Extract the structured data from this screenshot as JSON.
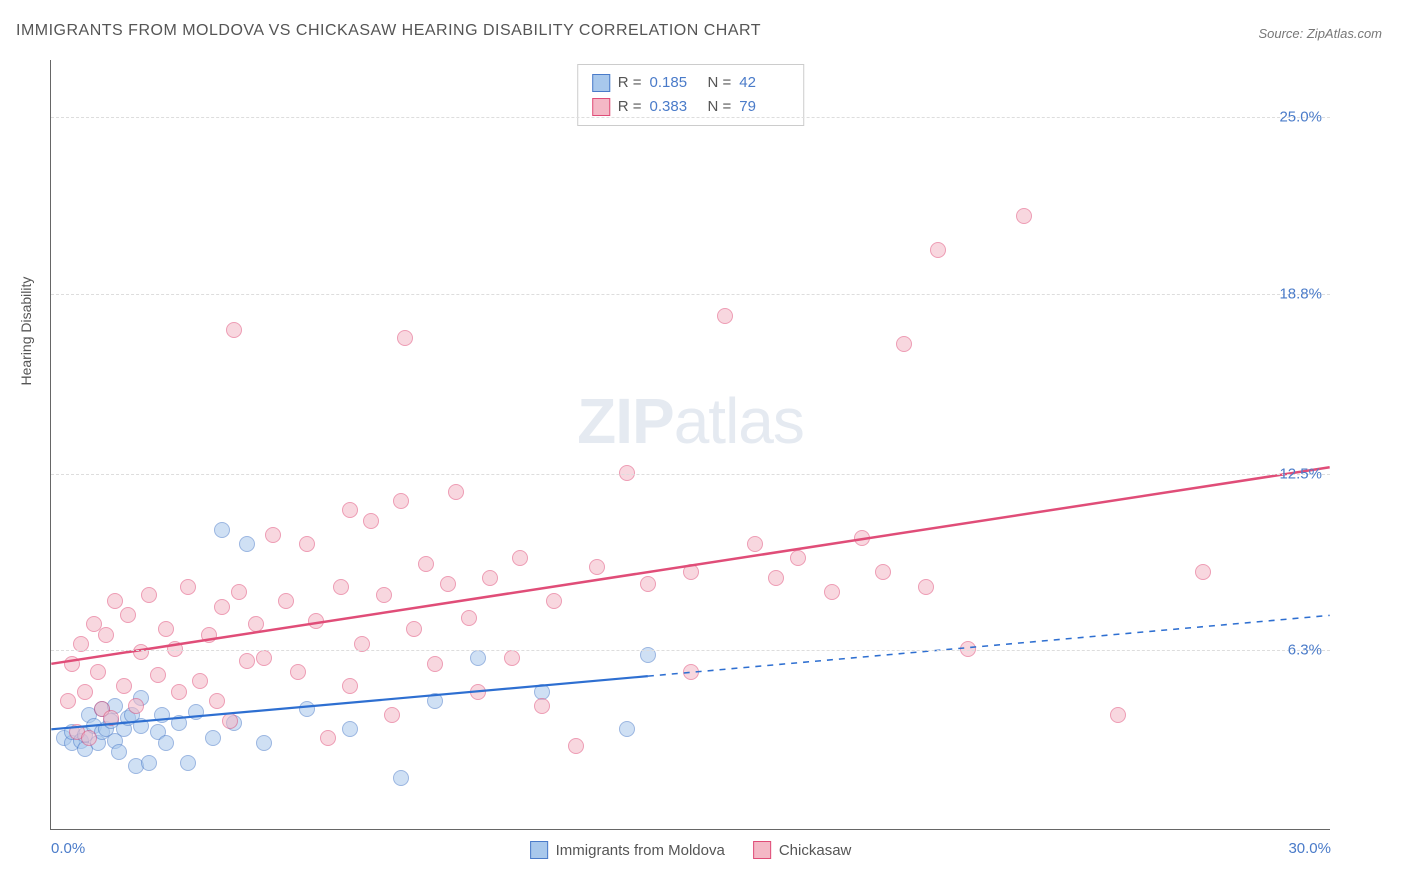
{
  "title": "IMMIGRANTS FROM MOLDOVA VS CHICKASAW HEARING DISABILITY CORRELATION CHART",
  "source": "Source: ZipAtlas.com",
  "y_axis_label": "Hearing Disability",
  "watermark": {
    "bold": "ZIP",
    "light": "atlas"
  },
  "chart": {
    "type": "scatter",
    "background_color": "#ffffff",
    "grid_color": "#dddddd",
    "axis_color": "#666666",
    "tick_label_color": "#4a7bc9",
    "tick_fontsize": 15,
    "xlim": [
      0.0,
      30.0
    ],
    "ylim": [
      0.0,
      27.0
    ],
    "x_ticks": [
      {
        "value": 0.0,
        "label": "0.0%"
      },
      {
        "value": 30.0,
        "label": "30.0%"
      }
    ],
    "y_ticks": [
      {
        "value": 6.3,
        "label": "6.3%"
      },
      {
        "value": 12.5,
        "label": "12.5%"
      },
      {
        "value": 18.8,
        "label": "18.8%"
      },
      {
        "value": 25.0,
        "label": "25.0%"
      }
    ],
    "series": [
      {
        "key": "moldova",
        "label": "Immigrants from Moldova",
        "marker": "circle",
        "marker_radius": 8,
        "fill_color": "#a8c8ec",
        "fill_opacity": 0.55,
        "stroke_color": "#4a7bc9",
        "trend": {
          "color": "#2e6fd1",
          "width": 2.2,
          "solid_from_x": 0.0,
          "solid_to_x": 14.0,
          "dash_from_x": 14.0,
          "dash_to_x": 30.0,
          "y_at_x0": 3.5,
          "y_at_x30": 7.5
        },
        "R": "0.185",
        "N": "42",
        "points": [
          [
            0.3,
            3.2
          ],
          [
            0.5,
            3.0
          ],
          [
            0.5,
            3.4
          ],
          [
            0.7,
            3.1
          ],
          [
            0.8,
            2.8
          ],
          [
            0.8,
            3.3
          ],
          [
            0.9,
            4.0
          ],
          [
            1.0,
            3.6
          ],
          [
            1.1,
            3.0
          ],
          [
            1.2,
            3.4
          ],
          [
            1.2,
            4.2
          ],
          [
            1.3,
            3.5
          ],
          [
            1.4,
            3.8
          ],
          [
            1.5,
            3.1
          ],
          [
            1.5,
            4.3
          ],
          [
            1.6,
            2.7
          ],
          [
            1.7,
            3.5
          ],
          [
            1.8,
            3.9
          ],
          [
            1.9,
            4.0
          ],
          [
            2.0,
            2.2
          ],
          [
            2.1,
            3.6
          ],
          [
            2.1,
            4.6
          ],
          [
            2.3,
            2.3
          ],
          [
            2.5,
            3.4
          ],
          [
            2.6,
            4.0
          ],
          [
            2.7,
            3.0
          ],
          [
            3.0,
            3.7
          ],
          [
            3.2,
            2.3
          ],
          [
            3.4,
            4.1
          ],
          [
            3.8,
            3.2
          ],
          [
            4.0,
            10.5
          ],
          [
            4.3,
            3.7
          ],
          [
            4.6,
            10.0
          ],
          [
            5.0,
            3.0
          ],
          [
            6.0,
            4.2
          ],
          [
            7.0,
            3.5
          ],
          [
            8.2,
            1.8
          ],
          [
            9.0,
            4.5
          ],
          [
            10.0,
            6.0
          ],
          [
            11.5,
            4.8
          ],
          [
            13.5,
            3.5
          ],
          [
            14.0,
            6.1
          ]
        ]
      },
      {
        "key": "chickasaw",
        "label": "Chickasaw",
        "marker": "circle",
        "marker_radius": 8,
        "fill_color": "#f4b8c6",
        "fill_opacity": 0.55,
        "stroke_color": "#e04d78",
        "trend": {
          "color": "#e04d78",
          "width": 2.5,
          "solid_from_x": 0.0,
          "solid_to_x": 30.0,
          "dash_from_x": 30.0,
          "dash_to_x": 30.0,
          "y_at_x0": 5.8,
          "y_at_x30": 12.7
        },
        "R": "0.383",
        "N": "79",
        "points": [
          [
            0.4,
            4.5
          ],
          [
            0.5,
            5.8
          ],
          [
            0.6,
            3.4
          ],
          [
            0.7,
            6.5
          ],
          [
            0.8,
            4.8
          ],
          [
            0.9,
            3.2
          ],
          [
            1.0,
            7.2
          ],
          [
            1.1,
            5.5
          ],
          [
            1.2,
            4.2
          ],
          [
            1.3,
            6.8
          ],
          [
            1.4,
            3.9
          ],
          [
            1.5,
            8.0
          ],
          [
            1.7,
            5.0
          ],
          [
            1.8,
            7.5
          ],
          [
            2.0,
            4.3
          ],
          [
            2.1,
            6.2
          ],
          [
            2.3,
            8.2
          ],
          [
            2.5,
            5.4
          ],
          [
            2.7,
            7.0
          ],
          [
            2.9,
            6.3
          ],
          [
            3.0,
            4.8
          ],
          [
            3.2,
            8.5
          ],
          [
            3.5,
            5.2
          ],
          [
            3.7,
            6.8
          ],
          [
            3.9,
            4.5
          ],
          [
            4.0,
            7.8
          ],
          [
            4.2,
            3.8
          ],
          [
            4.3,
            17.5
          ],
          [
            4.4,
            8.3
          ],
          [
            4.6,
            5.9
          ],
          [
            4.8,
            7.2
          ],
          [
            5.0,
            6.0
          ],
          [
            5.2,
            10.3
          ],
          [
            5.5,
            8.0
          ],
          [
            5.8,
            5.5
          ],
          [
            6.0,
            10.0
          ],
          [
            6.2,
            7.3
          ],
          [
            6.5,
            3.2
          ],
          [
            6.8,
            8.5
          ],
          [
            7.0,
            11.2
          ],
          [
            7.0,
            5.0
          ],
          [
            7.3,
            6.5
          ],
          [
            7.5,
            10.8
          ],
          [
            7.8,
            8.2
          ],
          [
            8.0,
            4.0
          ],
          [
            8.2,
            11.5
          ],
          [
            8.3,
            17.2
          ],
          [
            8.5,
            7.0
          ],
          [
            8.8,
            9.3
          ],
          [
            9.0,
            5.8
          ],
          [
            9.3,
            8.6
          ],
          [
            9.5,
            11.8
          ],
          [
            9.8,
            7.4
          ],
          [
            10.0,
            4.8
          ],
          [
            10.3,
            8.8
          ],
          [
            10.8,
            6.0
          ],
          [
            11.0,
            9.5
          ],
          [
            11.5,
            4.3
          ],
          [
            11.8,
            8.0
          ],
          [
            12.3,
            2.9
          ],
          [
            12.8,
            9.2
          ],
          [
            13.5,
            12.5
          ],
          [
            14.0,
            8.6
          ],
          [
            15.0,
            5.5
          ],
          [
            15.0,
            9.0
          ],
          [
            15.8,
            18.0
          ],
          [
            16.5,
            10.0
          ],
          [
            17.0,
            8.8
          ],
          [
            17.5,
            9.5
          ],
          [
            18.3,
            8.3
          ],
          [
            19.0,
            10.2
          ],
          [
            19.5,
            9.0
          ],
          [
            20.0,
            17.0
          ],
          [
            20.5,
            8.5
          ],
          [
            20.8,
            20.3
          ],
          [
            21.5,
            6.3
          ],
          [
            22.8,
            21.5
          ],
          [
            25.0,
            4.0
          ],
          [
            27.0,
            9.0
          ]
        ]
      }
    ]
  },
  "legend_top": {
    "rows": [
      {
        "swatch_fill": "#a8c8ec",
        "swatch_stroke": "#4a7bc9",
        "r_label": "R  =",
        "r_val": "0.185",
        "n_label": "N  =",
        "n_val": "42"
      },
      {
        "swatch_fill": "#f4b8c6",
        "swatch_stroke": "#e04d78",
        "r_label": "R  =",
        "r_val": "0.383",
        "n_label": "N  =",
        "n_val": "79"
      }
    ]
  },
  "legend_bottom": [
    {
      "swatch_fill": "#a8c8ec",
      "swatch_stroke": "#4a7bc9",
      "label": "Immigrants from Moldova"
    },
    {
      "swatch_fill": "#f4b8c6",
      "swatch_stroke": "#e04d78",
      "label": "Chickasaw"
    }
  ]
}
